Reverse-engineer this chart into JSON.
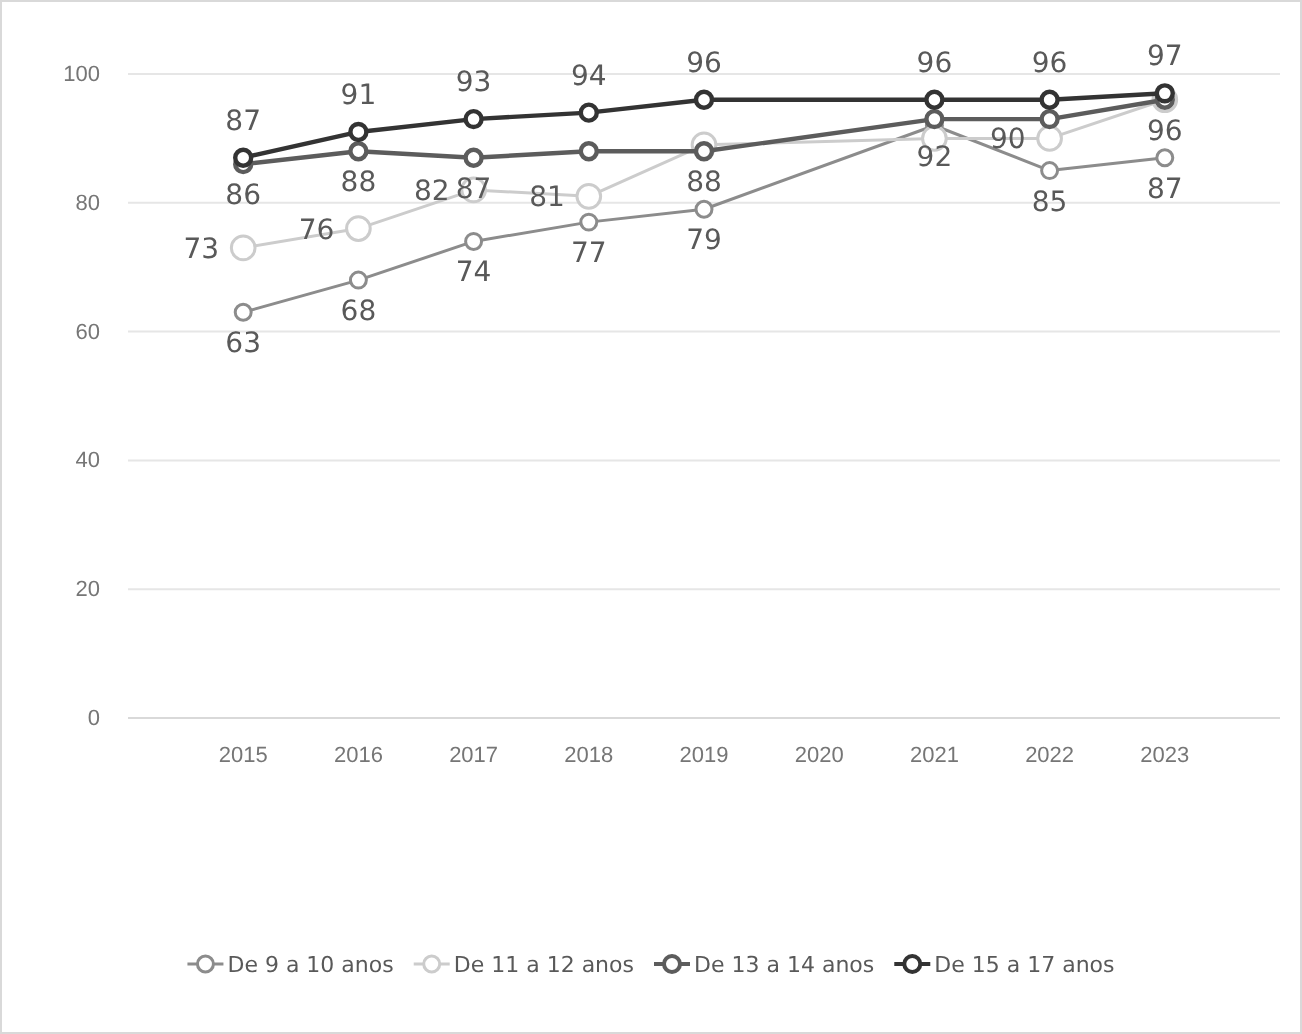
{
  "chart_data": {
    "type": "line",
    "categories": [
      "2015",
      "2016",
      "2017",
      "2018",
      "2019",
      "2020",
      "2021",
      "2022",
      "2023"
    ],
    "series": [
      {
        "name": "De 9 a 10 anos",
        "color": "#8c8c8c",
        "values": [
          63,
          68,
          74,
          77,
          79,
          null,
          92,
          85,
          87
        ],
        "value_labels": [
          "63",
          "68",
          "74",
          "77",
          "79",
          null,
          "92",
          "85",
          "87"
        ]
      },
      {
        "name": "De 11 a 12 anos",
        "color": "#cccccc",
        "values": [
          73,
          76,
          82,
          81,
          89,
          null,
          90,
          90,
          96
        ],
        "value_labels": [
          "73",
          "76",
          "82",
          "81",
          null,
          null,
          null,
          "90",
          null
        ]
      },
      {
        "name": "De 13 a 14 anos",
        "color": "#5c5c5c",
        "values": [
          86,
          88,
          87,
          88,
          88,
          null,
          93,
          93,
          96
        ],
        "value_labels": [
          "86",
          "88",
          "87",
          null,
          "88",
          null,
          null,
          null,
          "96"
        ]
      },
      {
        "name": "De 15 a 17 anos",
        "color": "#333333",
        "values": [
          87,
          91,
          93,
          94,
          96,
          null,
          96,
          96,
          97
        ],
        "value_labels": [
          "87",
          "91",
          "93",
          "94",
          "96",
          null,
          "96",
          "96",
          "97"
        ]
      }
    ],
    "ylim": [
      0,
      100
    ],
    "yticks": [
      0,
      20,
      40,
      60,
      80,
      100
    ],
    "grid": "y",
    "legend": "bottom",
    "marker": "circle",
    "line_style": "solid"
  }
}
